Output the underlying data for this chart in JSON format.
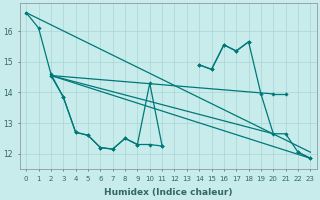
{
  "xlabel": "Humidex (Indice chaleur)",
  "background_color": "#c8ecec",
  "grid_color": "#aad4d4",
  "line_color": "#007878",
  "xlim": [
    -0.5,
    23.5
  ],
  "ylim": [
    11.5,
    16.9
  ],
  "yticks": [
    12,
    13,
    14,
    15,
    16
  ],
  "xticks": [
    0,
    1,
    2,
    3,
    4,
    5,
    6,
    7,
    8,
    9,
    10,
    11,
    12,
    13,
    14,
    15,
    16,
    17,
    18,
    19,
    20,
    21,
    22,
    23
  ],
  "line1": {
    "segments": [
      {
        "x": [
          0,
          1,
          2,
          3,
          4,
          5,
          6,
          7,
          8,
          9,
          10,
          11
        ],
        "y": [
          16.6,
          16.1,
          14.6,
          13.85,
          12.7,
          12.6,
          12.2,
          12.15,
          12.5,
          12.3,
          12.3,
          12.25
        ]
      },
      {
        "x": [
          14,
          15,
          16,
          17,
          18
        ],
        "y": [
          14.9,
          14.75,
          15.55,
          15.35,
          15.65
        ]
      },
      {
        "x": [
          20,
          21
        ],
        "y": [
          13.95,
          13.95
        ]
      },
      {
        "x": [
          22,
          23
        ],
        "y": [
          12.05,
          11.85
        ]
      }
    ]
  },
  "line2": {
    "segments": [
      {
        "x": [
          2,
          3,
          4,
          5,
          6,
          7,
          8,
          9,
          10,
          11
        ],
        "y": [
          14.55,
          13.85,
          12.7,
          12.6,
          12.2,
          12.15,
          12.5,
          12.3,
          14.3,
          12.25
        ]
      },
      {
        "x": [
          14,
          15,
          16,
          17,
          18,
          19,
          20,
          21,
          22,
          23
        ],
        "y": [
          14.9,
          14.75,
          15.55,
          15.35,
          15.65,
          13.95,
          12.65,
          12.65,
          12.05,
          11.85
        ]
      }
    ]
  },
  "trend_lines": [
    {
      "x": [
        0,
        23
      ],
      "y": [
        16.6,
        12.05
      ]
    },
    {
      "x": [
        2,
        23
      ],
      "y": [
        14.55,
        11.85
      ]
    },
    {
      "x": [
        2,
        20
      ],
      "y": [
        14.55,
        13.95
      ]
    },
    {
      "x": [
        2,
        20
      ],
      "y": [
        14.55,
        12.65
      ]
    }
  ]
}
